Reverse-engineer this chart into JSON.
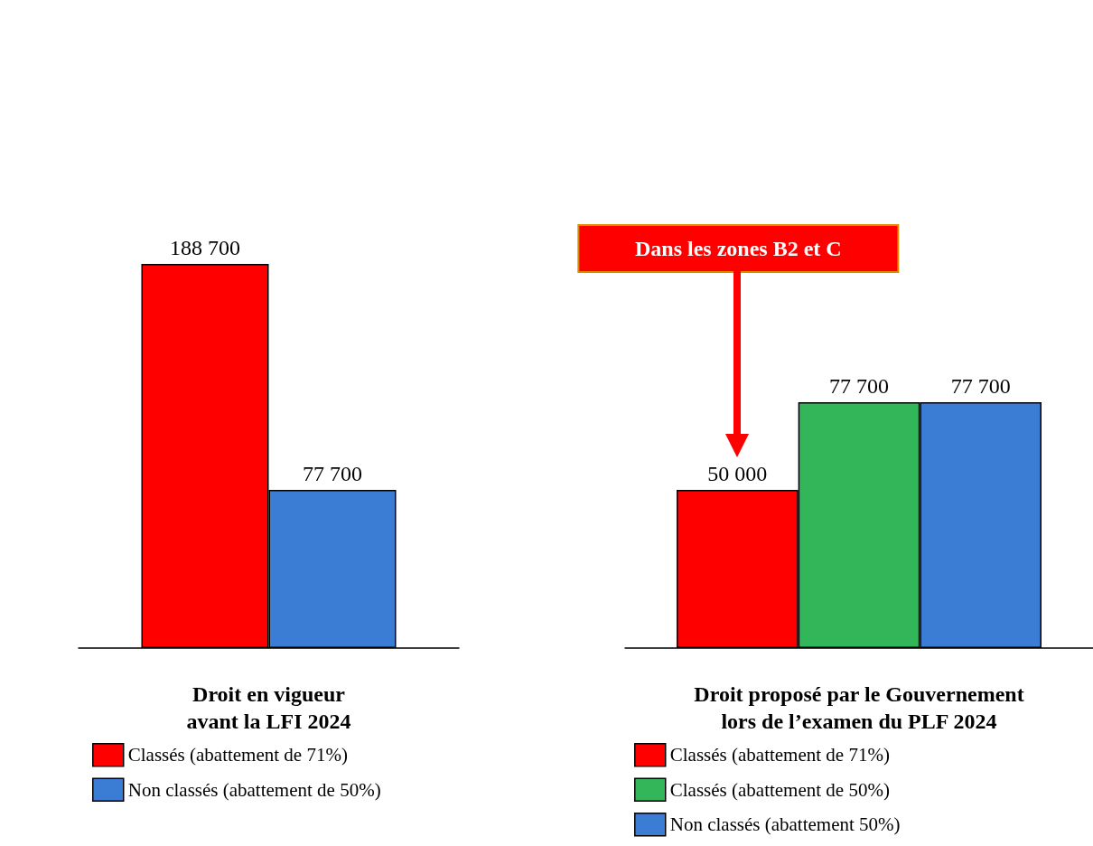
{
  "chart_data": [
    {
      "type": "bar",
      "categories": [
        null
      ],
      "xlabel": "Droit en vigueur\navant la LFI 2024",
      "legend": "bottom",
      "tick_labels": false,
      "series": [
        {
          "name": "Classés (abattement de 71%)",
          "color": "#ff0000",
          "values": [
            188700
          ],
          "value_labels": [
            "188 700"
          ]
        },
        {
          "name": "Non classés (abattement de 50%)",
          "color": "#3b7dd4",
          "values": [
            77700
          ],
          "value_labels": [
            "77 700"
          ]
        }
      ]
    },
    {
      "type": "bar",
      "categories": [
        null
      ],
      "xlabel": "Droit proposé par le Gouvernement\nlors de l’examen du PLF 2024",
      "legend": "bottom",
      "tick_labels": false,
      "annotations": [
        "Dans les zones B2 et C"
      ],
      "series": [
        {
          "name": "Classés (abattement de 71%)",
          "color": "#ff0000",
          "values": [
            50000
          ],
          "value_labels": [
            "50 000"
          ]
        },
        {
          "name": "Classés (abattement de 50%)",
          "color": "#33b65a",
          "values": [
            77700
          ],
          "value_labels": [
            "77 700"
          ]
        },
        {
          "name": "Non classés (abattement 50%)",
          "color": "#3b7dd4",
          "values": [
            77700
          ],
          "value_labels": [
            "77 700"
          ]
        }
      ]
    }
  ]
}
